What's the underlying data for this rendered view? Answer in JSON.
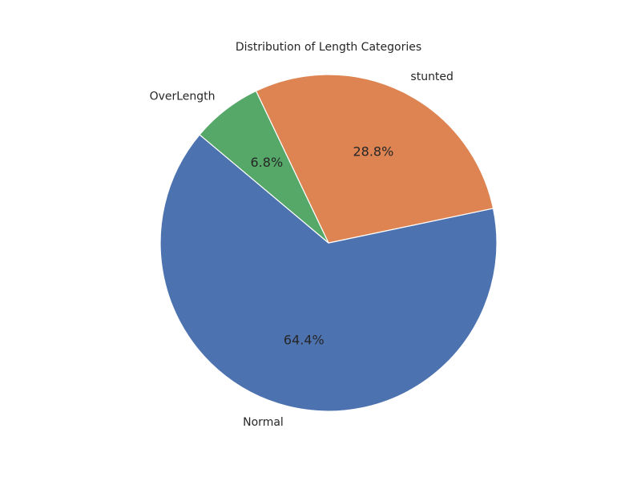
{
  "chart_data": {
    "type": "pie",
    "title": "Distribution of Length Categories",
    "slices": [
      {
        "label": "Normal",
        "value": 64.4,
        "display": "64.4%",
        "color": "#4c72b0"
      },
      {
        "label": "stunted",
        "value": 28.8,
        "display": "28.8%",
        "color": "#dd8452"
      },
      {
        "label": "OverLength",
        "value": 6.8,
        "display": "6.8%",
        "color": "#55a868"
      }
    ],
    "start_angle_deg": 140,
    "direction": "counterclockwise",
    "edge_color": "#ffffff",
    "legend": "none"
  }
}
